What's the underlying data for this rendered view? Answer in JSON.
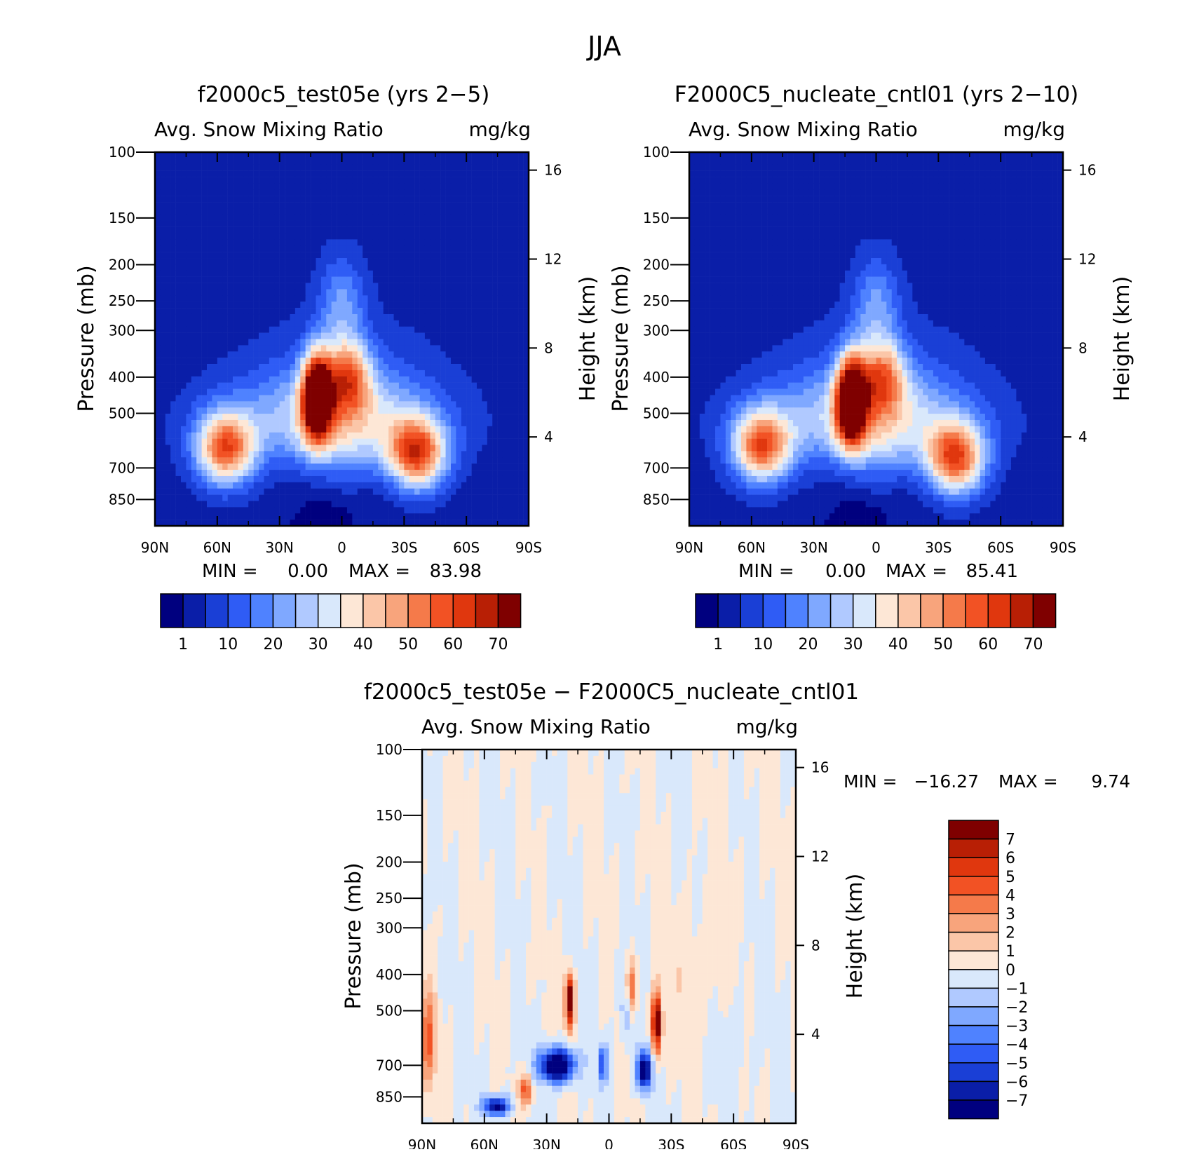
{
  "main_title": "JJA",
  "chart_data": [
    {
      "type": "heatmap",
      "title": "f2000c5_test05e (yrs 2-5)",
      "variable_label": "Avg. Snow Mixing Ratio",
      "units": "mg/kg",
      "ylabel": "Pressure (mb)",
      "ylabel_right": "Height (km)",
      "x_ticks": [
        "90N",
        "60N",
        "30N",
        "0",
        "30S",
        "60S",
        "90S"
      ],
      "y_ticks": [
        100,
        150,
        200,
        250,
        300,
        400,
        500,
        700,
        850
      ],
      "y_log_scale": true,
      "height_ticks": [
        4,
        8,
        12,
        16
      ],
      "min_label": "MIN =",
      "min_value": "0.00",
      "max_label": "MAX =",
      "max_value": "83.98",
      "colorbar_labels": [
        "1",
        "10",
        "20",
        "30",
        "40",
        "50",
        "60",
        "70"
      ],
      "features": [
        {
          "lat": 12,
          "p": 450,
          "peak": 80
        },
        {
          "lat": 56,
          "p": 620,
          "peak": 52
        },
        {
          "lat": -36,
          "p": 640,
          "peak": 56
        },
        {
          "lat": -3,
          "p": 400,
          "peak": 38
        }
      ]
    },
    {
      "type": "heatmap",
      "title": "F2000C5_nucleate_cntl01 (yrs 2-10)",
      "variable_label": "Avg. Snow Mixing Ratio",
      "units": "mg/kg",
      "ylabel": "Pressure (mb)",
      "ylabel_right": "Height (km)",
      "x_ticks": [
        "90N",
        "60N",
        "30N",
        "0",
        "30S",
        "60S",
        "90S"
      ],
      "y_ticks": [
        100,
        150,
        200,
        250,
        300,
        400,
        500,
        700,
        850
      ],
      "y_log_scale": true,
      "height_ticks": [
        4,
        8,
        12,
        16
      ],
      "min_label": "MIN =",
      "min_value": "0.00",
      "max_label": "MAX =",
      "max_value": "85.41",
      "colorbar_labels": [
        "1",
        "10",
        "20",
        "30",
        "40",
        "50",
        "60",
        "70"
      ],
      "features": [
        {
          "lat": 12,
          "p": 460,
          "peak": 82
        },
        {
          "lat": 55,
          "p": 610,
          "peak": 52
        },
        {
          "lat": -38,
          "p": 660,
          "peak": 55
        },
        {
          "lat": -3,
          "p": 400,
          "peak": 36
        }
      ]
    },
    {
      "type": "heatmap",
      "title": "f2000c5_test05e - F2000C5_nucleate_cntl01",
      "variable_label": "Avg. Snow Mixing Ratio",
      "units": "mg/kg",
      "ylabel": "Pressure (mb)",
      "ylabel_right": "Height (km)",
      "x_ticks": [
        "90N",
        "60N",
        "30N",
        "0",
        "30S",
        "60S",
        "90S"
      ],
      "y_ticks": [
        100,
        150,
        200,
        250,
        300,
        400,
        500,
        700,
        850
      ],
      "y_log_scale": true,
      "height_ticks": [
        4,
        8,
        12,
        16
      ],
      "min_label": "MIN =",
      "min_value": "-16.27",
      "max_label": "MAX =",
      "max_value": "9.74",
      "colorbar_labels": [
        "7",
        "6",
        "5",
        "4",
        "3",
        "2",
        "1",
        "0",
        "-1",
        "-2",
        "-3",
        "-4",
        "-5",
        "-6",
        "-7"
      ]
    }
  ],
  "colors": {
    "absolute_scale": [
      "#00007f",
      "#0a1ea8",
      "#1a3fd6",
      "#2f5cf5",
      "#4f82ff",
      "#7fa8ff",
      "#b0c9ff",
      "#d9e8fb",
      "#fde7d6",
      "#fbc6a8",
      "#f8a47c",
      "#f57a4a",
      "#f25224",
      "#e0370e",
      "#b81f05",
      "#7f0000"
    ],
    "difference_scale": [
      "#7f0000",
      "#b81f05",
      "#e0370e",
      "#f25224",
      "#f57a4a",
      "#f8a47c",
      "#fbc6a8",
      "#fde7d6",
      "#d9e8fb",
      "#b0c9ff",
      "#7fa8ff",
      "#4f82ff",
      "#2f5cf5",
      "#1a3fd6",
      "#0a1ea8",
      "#00007f"
    ]
  }
}
